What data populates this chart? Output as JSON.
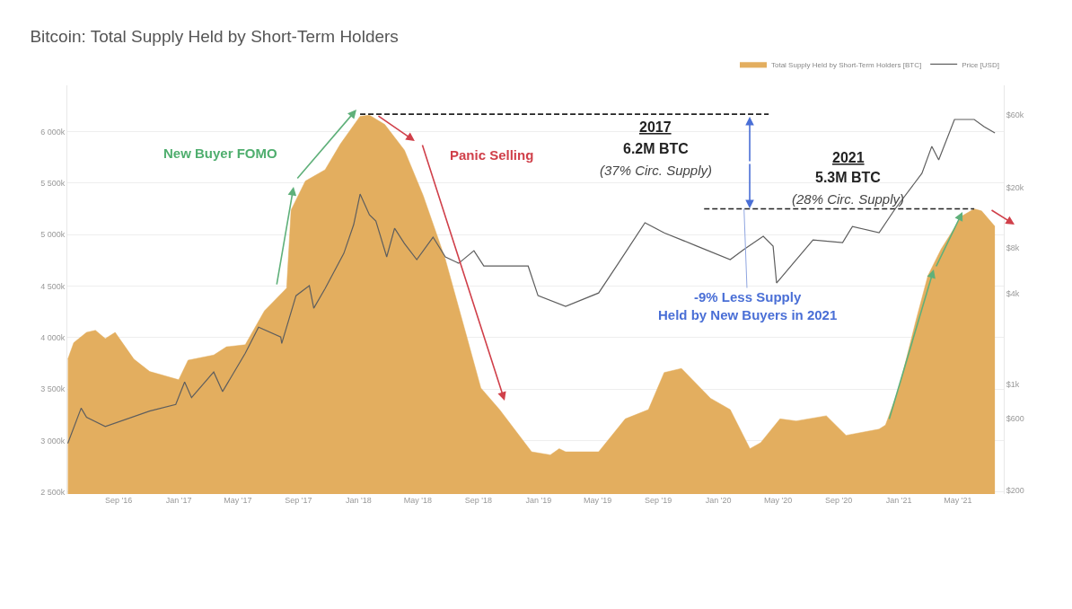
{
  "chart_data": {
    "type": "area",
    "title": "Bitcoin: Total Supply Held by Short-Term Holders",
    "xlim": [
      "2016-05-20",
      "2021-08-02"
    ],
    "xticks": [
      {
        "value": "2016-09-01",
        "label": "Sep '16"
      },
      {
        "value": "2017-01-01",
        "label": "Jan '17"
      },
      {
        "value": "2017-05-01",
        "label": "May '17"
      },
      {
        "value": "2017-09-01",
        "label": "Sep '17"
      },
      {
        "value": "2018-01-01",
        "label": "Jan '18"
      },
      {
        "value": "2018-05-01",
        "label": "May '18"
      },
      {
        "value": "2018-09-01",
        "label": "Sep '18"
      },
      {
        "value": "2019-01-01",
        "label": "Jan '19"
      },
      {
        "value": "2019-05-01",
        "label": "May '19"
      },
      {
        "value": "2019-09-01",
        "label": "Sep '19"
      },
      {
        "value": "2020-01-01",
        "label": "Jan '20"
      },
      {
        "value": "2020-05-01",
        "label": "May '20"
      },
      {
        "value": "2020-09-01",
        "label": "Sep '20"
      },
      {
        "value": "2021-01-01",
        "label": "Jan '21"
      },
      {
        "value": "2021-05-01",
        "label": "May '21"
      }
    ],
    "ylim": [
      2480000,
      6450000
    ],
    "yticks": [
      {
        "value": 2500000,
        "label": "2 500k"
      },
      {
        "value": 3000000,
        "label": "3 000k"
      },
      {
        "value": 3500000,
        "label": "3 500k"
      },
      {
        "value": 4000000,
        "label": "4 000k"
      },
      {
        "value": 4500000,
        "label": "4 500k"
      },
      {
        "value": 5000000,
        "label": "5 000k"
      },
      {
        "value": 5500000,
        "label": "5 500k"
      },
      {
        "value": 6000000,
        "label": "6 000k"
      }
    ],
    "y2lim": [
      190,
      94000
    ],
    "y2ticks": [
      {
        "value": 200,
        "label": "$200"
      },
      {
        "value": 600,
        "label": "$600"
      },
      {
        "value": 1000,
        "label": "$1k"
      },
      {
        "value": 4000,
        "label": "$4k"
      },
      {
        "value": 8000,
        "label": "$8k"
      },
      {
        "value": 20000,
        "label": "$20k"
      },
      {
        "value": 60000,
        "label": "$60k"
      }
    ],
    "log": "y2",
    "grid": "y",
    "legend": "top right",
    "series": [
      {
        "name": "Total Supply Held by Short-Term Holders [BTC]",
        "color": "#e3ae5f",
        "x": [
          "2016-05-21",
          "2016-06-02",
          "2016-06-28",
          "2016-07-16",
          "2016-08-05",
          "2016-08-25",
          "2016-10-02",
          "2016-11-03",
          "2017-01-01",
          "2017-01-20",
          "2017-03-13",
          "2017-04-08",
          "2017-05-16",
          "2017-06-24",
          "2017-08-08",
          "2017-08-17",
          "2017-09-15",
          "2017-10-25",
          "2017-11-25",
          "2018-01-04",
          "2018-01-23",
          "2018-02-23",
          "2018-04-04",
          "2018-05-12",
          "2018-06-26",
          "2018-08-10",
          "2018-09-06",
          "2018-10-14",
          "2018-12-18",
          "2019-01-25",
          "2019-02-12",
          "2019-02-25",
          "2019-05-03",
          "2019-06-26",
          "2019-08-12",
          "2019-09-13",
          "2019-10-18",
          "2019-12-16",
          "2020-01-25",
          "2020-03-05",
          "2020-03-27",
          "2020-05-05",
          "2020-06-07",
          "2020-08-07",
          "2020-09-16",
          "2020-11-22",
          "2020-12-05",
          "2021-01-01",
          "2021-02-04",
          "2021-03-01",
          "2021-03-28",
          "2021-05-09",
          "2021-06-03",
          "2021-06-18",
          "2021-07-15"
        ],
        "values": [
          3790000,
          3950000,
          4050000,
          4070000,
          3990000,
          4050000,
          3790000,
          3670000,
          3590000,
          3780000,
          3830000,
          3910000,
          3930000,
          4260000,
          4480000,
          5240000,
          5520000,
          5630000,
          5880000,
          6150000,
          6160000,
          6070000,
          5820000,
          5380000,
          4760000,
          3980000,
          3510000,
          3300000,
          2890000,
          2860000,
          2920000,
          2890000,
          2890000,
          3210000,
          3300000,
          3660000,
          3700000,
          3410000,
          3300000,
          2920000,
          2980000,
          3210000,
          3190000,
          3240000,
          3050000,
          3110000,
          3150000,
          3500000,
          4150000,
          4600000,
          4860000,
          5180000,
          5250000,
          5230000,
          5080000
        ]
      },
      {
        "name": "Price [USD]",
        "type": "line",
        "axis": "y2",
        "color": "#5e5e5e",
        "x": [
          "2016-05-21",
          "2016-06-17",
          "2016-06-28",
          "2016-08-05",
          "2016-11-03",
          "2016-12-26",
          "2017-01-13",
          "2017-01-27",
          "2017-03-13",
          "2017-03-31",
          "2017-05-16",
          "2017-06-12",
          "2017-07-27",
          "2017-07-29",
          "2017-08-27",
          "2017-09-23",
          "2017-10-02",
          "2017-10-25",
          "2017-12-02",
          "2017-12-22",
          "2018-01-04",
          "2018-01-23",
          "2018-02-05",
          "2018-02-27",
          "2018-03-15",
          "2018-04-04",
          "2018-04-29",
          "2018-06-01",
          "2018-06-26",
          "2018-07-23",
          "2018-08-23",
          "2018-09-12",
          "2018-12-11",
          "2018-12-31",
          "2019-02-25",
          "2019-05-03",
          "2019-06-12",
          "2019-08-05",
          "2019-09-13",
          "2019-11-19",
          "2020-01-25",
          "2020-02-21",
          "2020-04-01",
          "2020-04-21",
          "2020-04-28",
          "2020-06-07",
          "2020-07-11",
          "2020-09-09",
          "2020-09-29",
          "2020-11-22",
          "2020-12-24",
          "2021-02-17",
          "2021-03-09",
          "2021-03-23",
          "2021-04-24",
          "2021-06-03",
          "2021-06-23",
          "2021-07-15"
        ],
        "values": [
          410,
          700,
          610,
          530,
          670,
          740,
          1040,
          820,
          1210,
          900,
          1610,
          2390,
          2060,
          1870,
          3860,
          4490,
          3190,
          4300,
          7330,
          11350,
          18030,
          13170,
          11990,
          6950,
          10740,
          8510,
          6670,
          9380,
          6950,
          6310,
          7640,
          6050,
          6050,
          3860,
          3280,
          4020,
          6310,
          11670,
          10020,
          8180,
          6670,
          7750,
          9510,
          8180,
          4680,
          6670,
          9000,
          8630,
          11040,
          10020,
          14320,
          24720,
          37240,
          30340,
          55980,
          55980,
          50230,
          45600
        ]
      },
      {
        "type": "line",
        "color": "#222222",
        "line_style": "dashed",
        "x": [
          "2018-01-04",
          "2020-04-12"
        ],
        "values": [
          6170000,
          6170000
        ]
      },
      {
        "type": "line",
        "color": "#222222",
        "line_style": "dashed",
        "x": [
          "2019-12-03",
          "2021-06-03"
        ],
        "values": [
          5250000,
          5250000
        ]
      }
    ],
    "annotations": [
      "New Buyer FOMO",
      "Panic Selling",
      "2017",
      "6.2M BTC",
      "(37% Circ. Supply)",
      "2021",
      "5.3M BTC",
      "(28% Circ. Supply)",
      {
        "text": "-9% Less Supply\nHeld by New Buyers in 2021",
        "x": "2020-02-22",
        "y": 5250000
      }
    ]
  }
}
